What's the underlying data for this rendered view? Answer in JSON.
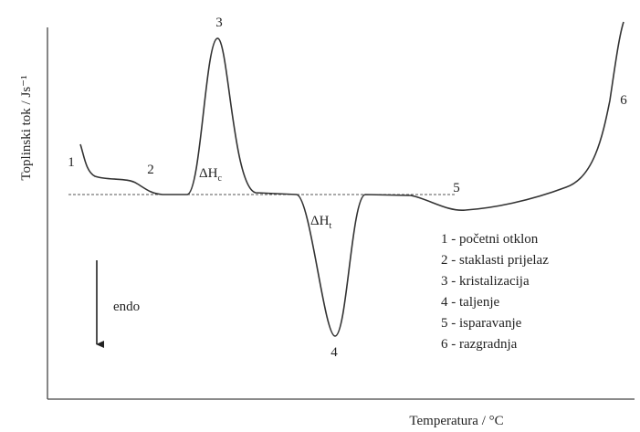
{
  "y_axis_label": "Toplinski tok / Js⁻¹",
  "x_axis_label": "Temperatura / °C",
  "point_labels": [
    "1",
    "2",
    "3",
    "4",
    "5",
    "6"
  ],
  "enthalpy_labels": [
    {
      "main": "ΔH",
      "sub": "c"
    },
    {
      "main": "ΔH",
      "sub": "t"
    }
  ],
  "direction_label": "endo",
  "legend": [
    "1 - početni otklon",
    "2 - staklasti prijelaz",
    "3 - kristalizacija",
    "4 - taljenje",
    "5 - isparavanje",
    "6 - razgradnja"
  ]
}
